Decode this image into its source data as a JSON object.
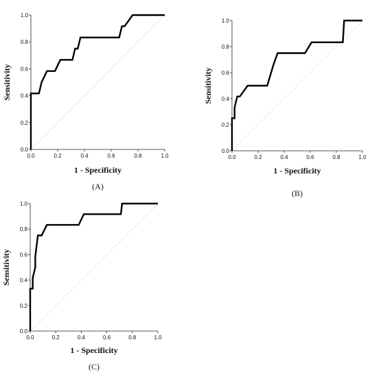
{
  "chart_data": [
    {
      "type": "line",
      "panel": "(A)",
      "xlabel": "1 - Specificity",
      "ylabel": "Sensitivity",
      "xlim": [
        0,
        1
      ],
      "ylim": [
        0,
        1
      ],
      "xticks": [
        "0.0",
        "0.2",
        "0.4",
        "0.6",
        "0.8",
        "1.0"
      ],
      "yticks": [
        "0.0",
        "0.2",
        "0.4",
        "0.6",
        "0.8",
        "1.0"
      ],
      "reference_line": true,
      "grid": false,
      "series": [
        {
          "x": [
            0,
            0,
            0.06,
            0.08,
            0.12,
            0.18,
            0.22,
            0.31,
            0.33,
            0.35,
            0.37,
            0.66,
            0.68,
            0.7,
            0.76,
            1.0
          ],
          "y": [
            0,
            0.417,
            0.417,
            0.5,
            0.583,
            0.583,
            0.667,
            0.667,
            0.75,
            0.75,
            0.833,
            0.833,
            0.917,
            0.917,
            1.0,
            1.0
          ]
        }
      ]
    },
    {
      "type": "line",
      "panel": "(B)",
      "xlabel": "1 - Specificity",
      "ylabel": "Sensitivity",
      "xlim": [
        0,
        1
      ],
      "ylim": [
        0,
        1
      ],
      "xticks": [
        "0.0",
        "0.2",
        "0.4",
        "0.6",
        "0.8",
        "1.0"
      ],
      "yticks": [
        "0.0",
        "0.2",
        "0.4",
        "0.6",
        "0.8",
        "1.0"
      ],
      "reference_line": true,
      "grid": false,
      "series": [
        {
          "x": [
            0,
            0,
            0.02,
            0.02,
            0.04,
            0.06,
            0.12,
            0.27,
            0.32,
            0.35,
            0.56,
            0.61,
            0.85,
            0.86,
            1.0
          ],
          "y": [
            0,
            0.25,
            0.25,
            0.333,
            0.417,
            0.417,
            0.5,
            0.5,
            0.667,
            0.75,
            0.75,
            0.833,
            0.833,
            1.0,
            1.0
          ]
        }
      ]
    },
    {
      "type": "line",
      "panel": "(C)",
      "xlabel": "1 - Specificity",
      "ylabel": "Sensitivity",
      "xlim": [
        0,
        1
      ],
      "ylim": [
        0,
        1
      ],
      "xticks": [
        "0.0",
        "0.2",
        "0.4",
        "0.6",
        "0.8",
        "1.0"
      ],
      "yticks": [
        "0.0",
        "0.2",
        "0.4",
        "0.6",
        "0.8",
        "1.0"
      ],
      "reference_line": true,
      "grid": false,
      "series": [
        {
          "x": [
            0,
            0,
            0.02,
            0.02,
            0.04,
            0.04,
            0.05,
            0.06,
            0.09,
            0.13,
            0.38,
            0.42,
            0.71,
            0.72,
            1.0
          ],
          "y": [
            0,
            0.333,
            0.333,
            0.417,
            0.5,
            0.583,
            0.667,
            0.75,
            0.75,
            0.833,
            0.833,
            0.917,
            0.917,
            1.0,
            1.0
          ]
        }
      ]
    }
  ]
}
